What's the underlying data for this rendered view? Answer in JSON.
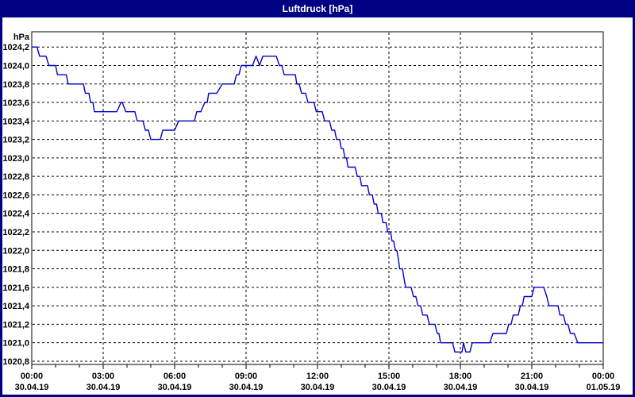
{
  "window": {
    "title": "Luftdruck [hPa]",
    "title_bar_color": "#000082",
    "border_color": "#000082"
  },
  "chart_data": {
    "type": "line",
    "title": "Luftdruck [hPa]",
    "xlabel": "",
    "ylabel": "hPa",
    "grid": {
      "style": "dashed",
      "color": "#000000",
      "show": true
    },
    "legend_position": "none",
    "y_axis": {
      "unit_label": "hPa",
      "min": 1020.8,
      "max": 1024.2,
      "step": 0.2,
      "decimal_separator": ",",
      "ticks": [
        {
          "value": 1024.2,
          "label": "1024,2"
        },
        {
          "value": 1024.0,
          "label": "1024,0"
        },
        {
          "value": 1023.8,
          "label": "1023,8"
        },
        {
          "value": 1023.6,
          "label": "1023,6"
        },
        {
          "value": 1023.4,
          "label": "1023,4"
        },
        {
          "value": 1023.2,
          "label": "1023,2"
        },
        {
          "value": 1023.0,
          "label": "1023,0"
        },
        {
          "value": 1022.8,
          "label": "1022,8"
        },
        {
          "value": 1022.6,
          "label": "1022,6"
        },
        {
          "value": 1022.4,
          "label": "1022,4"
        },
        {
          "value": 1022.2,
          "label": "1022,2"
        },
        {
          "value": 1022.0,
          "label": "1022,0"
        },
        {
          "value": 1021.8,
          "label": "1021,8"
        },
        {
          "value": 1021.6,
          "label": "1021,6"
        },
        {
          "value": 1021.4,
          "label": "1021,4"
        },
        {
          "value": 1021.2,
          "label": "1021,2"
        },
        {
          "value": 1021.0,
          "label": "1021,0"
        },
        {
          "value": 1020.8,
          "label": "1020,8"
        }
      ]
    },
    "x_axis": {
      "range_hours": [
        0,
        24
      ],
      "minor_tick_every_hours": 1,
      "major_ticks": [
        {
          "hour": 0,
          "time": "00:00",
          "date": "30.04.19"
        },
        {
          "hour": 3,
          "time": "03:00",
          "date": "30.04.19"
        },
        {
          "hour": 6,
          "time": "06:00",
          "date": "30.04.19"
        },
        {
          "hour": 9,
          "time": "09:00",
          "date": "30.04.19"
        },
        {
          "hour": 12,
          "time": "12:00",
          "date": "30.04.19"
        },
        {
          "hour": 15,
          "time": "15:00",
          "date": "30.04.19"
        },
        {
          "hour": 18,
          "time": "18:00",
          "date": "30.04.19"
        },
        {
          "hour": 21,
          "time": "21:00",
          "date": "30.04.19"
        },
        {
          "hour": 24,
          "time": "00:00",
          "date": "01.05.19"
        }
      ]
    },
    "series": [
      {
        "name": "Luftdruck",
        "color": "#0000CC",
        "points": [
          [
            0.0,
            1024.2
          ],
          [
            0.22,
            1024.2
          ],
          [
            0.33,
            1024.1
          ],
          [
            0.6,
            1024.1
          ],
          [
            0.72,
            1024.0
          ],
          [
            1.0,
            1024.0
          ],
          [
            1.08,
            1023.9
          ],
          [
            1.45,
            1023.9
          ],
          [
            1.53,
            1023.8
          ],
          [
            2.17,
            1023.8
          ],
          [
            2.25,
            1023.7
          ],
          [
            2.4,
            1023.7
          ],
          [
            2.47,
            1023.6
          ],
          [
            2.57,
            1023.6
          ],
          [
            2.63,
            1023.5
          ],
          [
            3.57,
            1023.5
          ],
          [
            3.75,
            1023.6
          ],
          [
            3.8,
            1023.6
          ],
          [
            3.95,
            1023.5
          ],
          [
            4.33,
            1023.5
          ],
          [
            4.43,
            1023.4
          ],
          [
            4.67,
            1023.4
          ],
          [
            4.77,
            1023.3
          ],
          [
            4.9,
            1023.3
          ],
          [
            5.0,
            1023.2
          ],
          [
            5.4,
            1023.2
          ],
          [
            5.5,
            1023.3
          ],
          [
            6.0,
            1023.3
          ],
          [
            6.17,
            1023.4
          ],
          [
            6.83,
            1023.4
          ],
          [
            6.93,
            1023.5
          ],
          [
            7.1,
            1023.5
          ],
          [
            7.27,
            1023.6
          ],
          [
            7.37,
            1023.6
          ],
          [
            7.43,
            1023.7
          ],
          [
            7.77,
            1023.7
          ],
          [
            8.0,
            1023.8
          ],
          [
            8.5,
            1023.8
          ],
          [
            8.6,
            1023.9
          ],
          [
            8.7,
            1023.9
          ],
          [
            8.8,
            1024.0
          ],
          [
            9.27,
            1024.0
          ],
          [
            9.42,
            1024.1
          ],
          [
            9.57,
            1024.0
          ],
          [
            9.7,
            1024.1
          ],
          [
            10.27,
            1024.1
          ],
          [
            10.4,
            1024.0
          ],
          [
            10.5,
            1024.0
          ],
          [
            10.6,
            1023.9
          ],
          [
            11.07,
            1023.9
          ],
          [
            11.13,
            1023.8
          ],
          [
            11.23,
            1023.8
          ],
          [
            11.33,
            1023.7
          ],
          [
            11.5,
            1023.7
          ],
          [
            11.6,
            1023.6
          ],
          [
            11.85,
            1023.6
          ],
          [
            11.95,
            1023.5
          ],
          [
            12.2,
            1023.5
          ],
          [
            12.3,
            1023.4
          ],
          [
            12.5,
            1023.4
          ],
          [
            12.6,
            1023.3
          ],
          [
            12.72,
            1023.3
          ],
          [
            12.8,
            1023.2
          ],
          [
            12.93,
            1023.2
          ],
          [
            13.0,
            1023.1
          ],
          [
            13.08,
            1023.1
          ],
          [
            13.15,
            1023.0
          ],
          [
            13.22,
            1023.0
          ],
          [
            13.28,
            1022.9
          ],
          [
            13.58,
            1022.9
          ],
          [
            13.67,
            1022.8
          ],
          [
            13.78,
            1022.8
          ],
          [
            13.85,
            1022.7
          ],
          [
            14.1,
            1022.7
          ],
          [
            14.18,
            1022.6
          ],
          [
            14.3,
            1022.6
          ],
          [
            14.38,
            1022.5
          ],
          [
            14.48,
            1022.5
          ],
          [
            14.55,
            1022.4
          ],
          [
            14.68,
            1022.4
          ],
          [
            14.75,
            1022.3
          ],
          [
            14.88,
            1022.3
          ],
          [
            14.95,
            1022.2
          ],
          [
            15.07,
            1022.2
          ],
          [
            15.13,
            1022.1
          ],
          [
            15.2,
            1022.1
          ],
          [
            15.27,
            1022.0
          ],
          [
            15.33,
            1022.0
          ],
          [
            15.4,
            1021.9
          ],
          [
            15.45,
            1021.8
          ],
          [
            15.57,
            1021.8
          ],
          [
            15.63,
            1021.7
          ],
          [
            15.7,
            1021.6
          ],
          [
            15.93,
            1021.6
          ],
          [
            16.03,
            1021.5
          ],
          [
            16.13,
            1021.5
          ],
          [
            16.22,
            1021.4
          ],
          [
            16.33,
            1021.4
          ],
          [
            16.42,
            1021.3
          ],
          [
            16.6,
            1021.3
          ],
          [
            16.7,
            1021.2
          ],
          [
            16.93,
            1021.2
          ],
          [
            17.03,
            1021.1
          ],
          [
            17.1,
            1021.1
          ],
          [
            17.17,
            1021.0
          ],
          [
            17.67,
            1021.0
          ],
          [
            17.77,
            1020.9
          ],
          [
            18.07,
            1020.9
          ],
          [
            18.13,
            1021.0
          ],
          [
            18.23,
            1020.9
          ],
          [
            18.4,
            1020.9
          ],
          [
            18.5,
            1021.0
          ],
          [
            19.23,
            1021.0
          ],
          [
            19.37,
            1021.1
          ],
          [
            19.93,
            1021.1
          ],
          [
            20.03,
            1021.2
          ],
          [
            20.13,
            1021.2
          ],
          [
            20.22,
            1021.3
          ],
          [
            20.43,
            1021.3
          ],
          [
            20.52,
            1021.4
          ],
          [
            20.6,
            1021.4
          ],
          [
            20.68,
            1021.5
          ],
          [
            21.0,
            1021.5
          ],
          [
            21.1,
            1021.6
          ],
          [
            21.5,
            1021.6
          ],
          [
            21.63,
            1021.5
          ],
          [
            21.72,
            1021.4
          ],
          [
            22.1,
            1021.4
          ],
          [
            22.18,
            1021.3
          ],
          [
            22.33,
            1021.3
          ],
          [
            22.42,
            1021.2
          ],
          [
            22.52,
            1021.2
          ],
          [
            22.62,
            1021.1
          ],
          [
            22.78,
            1021.1
          ],
          [
            22.93,
            1021.0
          ],
          [
            24.0,
            1021.0
          ]
        ]
      }
    ]
  }
}
